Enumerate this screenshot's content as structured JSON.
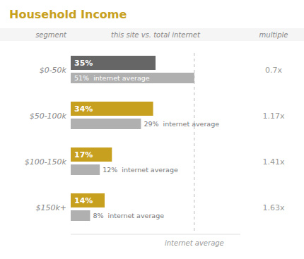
{
  "chart_data": {
    "type": "bar",
    "orientation": "horizontal",
    "title": "Household Income",
    "title_color": "#c8a020",
    "categories": [
      "$0-50k",
      "$50-100k",
      "$100-150k",
      "$150k+"
    ],
    "series": [
      {
        "values": [
          35,
          34,
          17,
          14
        ],
        "value_labels": [
          "35%",
          "34%",
          "17%",
          "14%"
        ],
        "colors": [
          "#666666",
          "#c8a020",
          "#c8a020",
          "#c8a020"
        ]
      },
      {
        "values": [
          51,
          29,
          12,
          8
        ],
        "value_labels": [
          "51%  internet average",
          "29%  internet average",
          "12%  internet average",
          "8%  internet average"
        ],
        "color": "#b0b0b0"
      }
    ],
    "multiples": [
      "0.7x",
      "1.17x",
      "1.41x",
      "1.63x"
    ],
    "header_labels": [
      "segment",
      "this site vs. total internet",
      "multiple"
    ],
    "reference_line": {
      "value": 51,
      "label": "internet average"
    },
    "xlim": [
      0,
      70
    ],
    "data_labels": true,
    "tick_labels": false,
    "grid": false
  }
}
